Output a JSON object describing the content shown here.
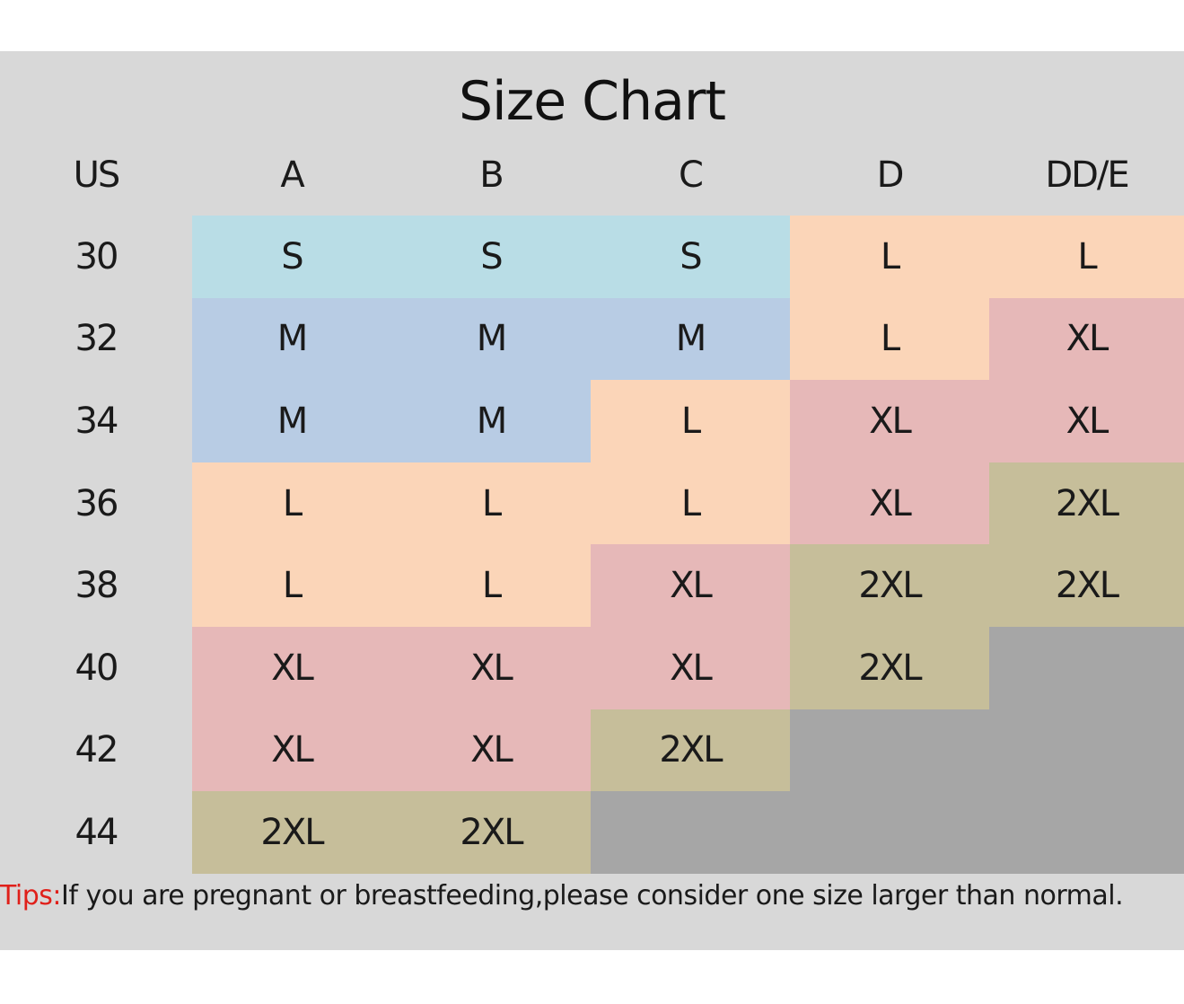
{
  "chart_data": {
    "type": "table",
    "title": "Size Chart",
    "columns": [
      "US",
      "A",
      "B",
      "C",
      "D",
      "DD/E"
    ],
    "rows": [
      {
        "band": "30",
        "sizes": [
          "S",
          "S",
          "S",
          "L",
          "L"
        ]
      },
      {
        "band": "32",
        "sizes": [
          "M",
          "M",
          "M",
          "L",
          "XL"
        ]
      },
      {
        "band": "34",
        "sizes": [
          "M",
          "M",
          "L",
          "XL",
          "XL"
        ]
      },
      {
        "band": "36",
        "sizes": [
          "L",
          "L",
          "L",
          "XL",
          "2XL"
        ]
      },
      {
        "band": "38",
        "sizes": [
          "L",
          "L",
          "XL",
          "2XL",
          "2XL"
        ]
      },
      {
        "band": "40",
        "sizes": [
          "XL",
          "XL",
          "XL",
          "2XL",
          ""
        ]
      },
      {
        "band": "42",
        "sizes": [
          "XL",
          "XL",
          "2XL",
          "",
          ""
        ]
      },
      {
        "band": "44",
        "sizes": [
          "2XL",
          "2XL",
          "",
          "",
          ""
        ]
      }
    ],
    "size_colors": {
      "S": "#b9dde6",
      "M": "#b8cce4",
      "L": "#fbd5b8",
      "XL": "#e6b8b8",
      "2XL": "#c6be9a",
      "": "#a6a6a6"
    }
  },
  "tips": {
    "label": "Tips:",
    "text": "If you are pregnant or breastfeeding,please consider one size larger than normal."
  },
  "colors": {
    "panel_background": "#d8d8d8",
    "tips_label": "#e0201a"
  }
}
